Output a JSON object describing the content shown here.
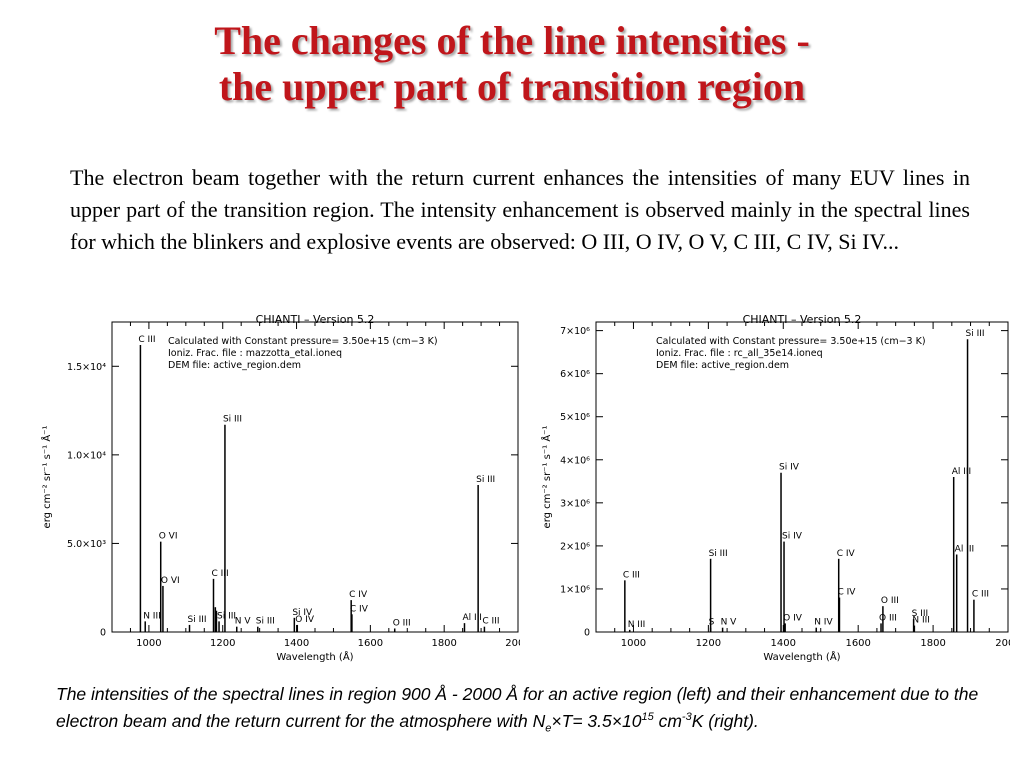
{
  "title": {
    "line1": "The changes of the line intensities -",
    "line2": "the upper part of transition region"
  },
  "intro_text": "The electron beam together with the return current enhances the intensities of many EUV lines in upper part of the transition region. The intensity enhancement is observed mainly in the spectral lines for which the blinkers and explosive events are observed: O III,  O IV,  O V,  C III,  C IV,  Si IV...",
  "caption": {
    "part1": "The intensities of the spectral lines in region 900 Å - 2000 Å for an active region (left) and their enhancement due to the electron beam and the return current for the atmosphere with N",
    "sub_e": "e",
    "times1": "×",
    "t_eq": "T= 3.5",
    "times2": "×",
    "ten": "10",
    "exp15": "15",
    "cm": " cm",
    "exp_m3": "-3",
    "tail": "K (right)."
  },
  "chart_data": [
    {
      "type": "bar",
      "title": "CHIANTI  –  Version 5.2",
      "annotation": [
        "Calculated with Constant pressure=   3.50e+15 (cm−3 K)",
        "Ioniz. Frac. file : mazzotta_etal.ioneq",
        "DEM file: active_region.dem"
      ],
      "xlabel": "Wavelength (Å)",
      "ylabel": "erg cm⁻² sr⁻¹ s⁻¹ Å⁻¹",
      "xlim": [
        900,
        2000
      ],
      "ylim": [
        0,
        17500
      ],
      "xticks": [
        1000,
        1200,
        1400,
        1600,
        1800,
        2000
      ],
      "yticks": [
        {
          "value": 0,
          "label": "0"
        },
        {
          "value": 5000,
          "label": "5.0×10³"
        },
        {
          "value": 10000,
          "label": "1.0×10⁴"
        },
        {
          "value": 15000,
          "label": "1.5×10⁴"
        }
      ],
      "lines": [
        {
          "x": 977,
          "y": 16200,
          "label": "C III"
        },
        {
          "x": 990,
          "y": 600,
          "label": "N III"
        },
        {
          "x": 1032,
          "y": 5100,
          "label": "O VI"
        },
        {
          "x": 1038,
          "y": 2600,
          "label": "O VI"
        },
        {
          "x": 1110,
          "y": 400,
          "label": "Si III"
        },
        {
          "x": 1175,
          "y": 3000,
          "label": "C III"
        },
        {
          "x": 1180,
          "y": 1400,
          "label": ""
        },
        {
          "x": 1183,
          "y": 1200,
          "label": ""
        },
        {
          "x": 1190,
          "y": 600,
          "label": "Si III"
        },
        {
          "x": 1206,
          "y": 11700,
          "label": "Si III"
        },
        {
          "x": 1238,
          "y": 300,
          "label": "N V"
        },
        {
          "x": 1295,
          "y": 300,
          "label": "Si III"
        },
        {
          "x": 1394,
          "y": 800,
          "label": "Si IV"
        },
        {
          "x": 1402,
          "y": 400,
          "label": "O IV"
        },
        {
          "x": 1548,
          "y": 1800,
          "label": "C IV"
        },
        {
          "x": 1550,
          "y": 1000,
          "label": "C IV"
        },
        {
          "x": 1666,
          "y": 200,
          "label": "O III"
        },
        {
          "x": 1855,
          "y": 500,
          "label": "Al III"
        },
        {
          "x": 1892,
          "y": 8300,
          "label": "Si III"
        },
        {
          "x": 1909,
          "y": 300,
          "label": "C III"
        }
      ]
    },
    {
      "type": "bar",
      "title": "CHIANTI  –  Version 5.2",
      "annotation": [
        "Calculated with Constant pressure=   3.50e+15 (cm−3 K)",
        "Ioniz. Frac. file : rc_all_35e14.ioneq",
        "DEM file: active_region.dem"
      ],
      "xlabel": "Wavelength (Å)",
      "ylabel": "erg cm⁻² sr⁻¹ s⁻¹ Å⁻¹",
      "xlim": [
        900,
        2000
      ],
      "ylim": [
        0,
        7200000
      ],
      "xticks": [
        1000,
        1200,
        1400,
        1600,
        1800,
        2000
      ],
      "yticks": [
        {
          "value": 0,
          "label": "0"
        },
        {
          "value": 1000000,
          "label": "1×10⁶"
        },
        {
          "value": 2000000,
          "label": "2×10⁶"
        },
        {
          "value": 3000000,
          "label": "3×10⁶"
        },
        {
          "value": 4000000,
          "label": "4×10⁶"
        },
        {
          "value": 5000000,
          "label": "5×10⁶"
        },
        {
          "value": 6000000,
          "label": "6×10⁶"
        },
        {
          "value": 7000000,
          "label": "7×10⁶"
        }
      ],
      "lines": [
        {
          "x": 977,
          "y": 1200000,
          "label": "C III"
        },
        {
          "x": 990,
          "y": 50000,
          "label": "N III"
        },
        {
          "x": 1206,
          "y": 1700000,
          "label": "Si III"
        },
        {
          "x": 1206,
          "y": 100000,
          "label": "S"
        },
        {
          "x": 1238,
          "y": 100000,
          "label": "N V"
        },
        {
          "x": 1394,
          "y": 3700000,
          "label": "Si IV"
        },
        {
          "x": 1402,
          "y": 2100000,
          "label": "Si IV"
        },
        {
          "x": 1405,
          "y": 200000,
          "label": "O IV"
        },
        {
          "x": 1488,
          "y": 100000,
          "label": "N IV"
        },
        {
          "x": 1548,
          "y": 1700000,
          "label": "C IV"
        },
        {
          "x": 1550,
          "y": 800000,
          "label": "C IV"
        },
        {
          "x": 1661,
          "y": 200000,
          "label": "O III"
        },
        {
          "x": 1666,
          "y": 600000,
          "label": "O III"
        },
        {
          "x": 1748,
          "y": 300000,
          "label": "S III"
        },
        {
          "x": 1750,
          "y": 150000,
          "label": "N III"
        },
        {
          "x": 1855,
          "y": 3600000,
          "label": "Al III"
        },
        {
          "x": 1863,
          "y": 1800000,
          "label": "Al III"
        },
        {
          "x": 1892,
          "y": 6800000,
          "label": "Si III"
        },
        {
          "x": 1909,
          "y": 750000,
          "label": "C III"
        }
      ]
    }
  ]
}
